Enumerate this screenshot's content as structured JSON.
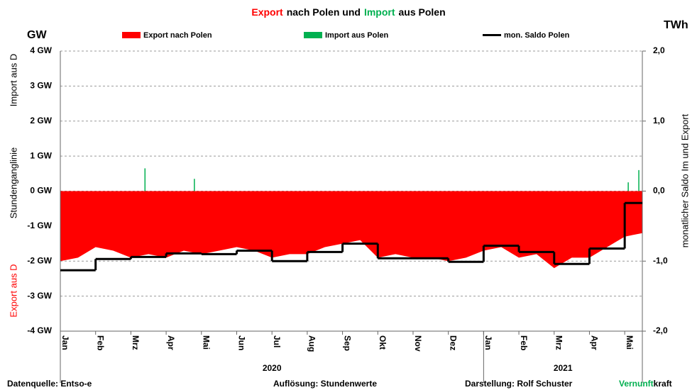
{
  "chart_data": {
    "type": "area-step",
    "title_parts": [
      {
        "text": "Export",
        "color": "#ff0000"
      },
      {
        "text": "nach  Polen und",
        "color": "#000000"
      },
      {
        "text": "Import",
        "color": "#00b050"
      },
      {
        "text": "aus Polen",
        "color": "#000000"
      }
    ],
    "y_unit": "GW",
    "y2_unit": "TWh",
    "y_label_top": "Import aus D",
    "y_label_middle": "Stundenganglinie",
    "y_label_bottom": "Export aus D",
    "y2_label": "monatlicher Saldo Im und Export",
    "categories": [
      "Jan",
      "Feb",
      "Mrz",
      "Apr",
      "Mai",
      "Jun",
      "Jul",
      "Aug",
      "Sep",
      "Okt",
      "Nov",
      "Dez",
      "Jan",
      "Feb",
      "Mrz",
      "Apr",
      "Mai"
    ],
    "year_labels": [
      "2020",
      "2021"
    ],
    "xlim": [
      0,
      16.5
    ],
    "ylim": [
      -4,
      4
    ],
    "yticks": [
      {
        "value": 4,
        "label": "4 GW"
      },
      {
        "value": 3,
        "label": "3 GW"
      },
      {
        "value": 2,
        "label": "2 GW"
      },
      {
        "value": 1,
        "label": "1 GW"
      },
      {
        "value": 0,
        "label": "0 GW"
      },
      {
        "value": -1,
        "label": "-1 GW"
      },
      {
        "value": -2,
        "label": "-2 GW"
      },
      {
        "value": -3,
        "label": "-3 GW"
      },
      {
        "value": -4,
        "label": "-4 GW"
      }
    ],
    "y2lim": [
      -2,
      2
    ],
    "y2ticks": [
      {
        "value": 2,
        "label": "2,0"
      },
      {
        "value": 1,
        "label": "1,0"
      },
      {
        "value": 0,
        "label": "0,0"
      },
      {
        "value": -1,
        "label": "-1,0"
      },
      {
        "value": -2,
        "label": "-2,0"
      }
    ],
    "grid": true,
    "series": [
      {
        "name": "Export nach Polen",
        "color": "#ff0000",
        "x": [
          0,
          0.5,
          1,
          1.5,
          2,
          2.5,
          3,
          3.5,
          4,
          4.5,
          5,
          5.5,
          6,
          6.5,
          7,
          7.5,
          8,
          8.5,
          9,
          9.5,
          10,
          10.5,
          11,
          11.5,
          12,
          12.5,
          13,
          13.5,
          14,
          14.5,
          15,
          15.5,
          16,
          16.5
        ],
        "values": [
          -2.0,
          -1.9,
          -1.6,
          -1.7,
          -1.9,
          -1.8,
          -1.9,
          -1.7,
          -1.8,
          -1.7,
          -1.6,
          -1.7,
          -1.9,
          -1.8,
          -1.8,
          -1.6,
          -1.5,
          -1.4,
          -1.9,
          -1.8,
          -1.9,
          -1.9,
          -2.0,
          -1.9,
          -1.7,
          -1.6,
          -1.9,
          -1.8,
          -2.2,
          -1.9,
          -1.9,
          -1.6,
          -1.3,
          -1.2
        ]
      },
      {
        "name": "Import aus Polen",
        "color": "#00b050",
        "x": [
          2.4,
          3.8,
          16.1,
          16.4
        ],
        "values": [
          0.65,
          0.35,
          0.25,
          0.6
        ]
      },
      {
        "name": "mon. Saldo Polen",
        "color": "#000000",
        "axis": "y2",
        "values": [
          -1.13,
          -0.97,
          -0.94,
          -0.89,
          -0.9,
          -0.85,
          -1.0,
          -0.87,
          -0.75,
          -0.96,
          -0.96,
          -1.01,
          -0.78,
          -0.87,
          -1.04,
          -0.82,
          -0.17
        ]
      }
    ],
    "footer": {
      "source": "Datenquelle: Entso-e",
      "resolution": "Auflösung: Stundenwerte",
      "author": "Darstellung:  Rolf Schuster",
      "brand_green": "Vernunft",
      "brand_black": "kraft"
    }
  }
}
